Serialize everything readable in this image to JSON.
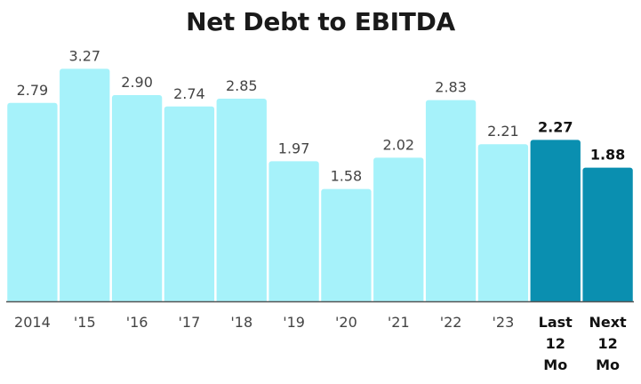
{
  "chart_data": {
    "type": "bar",
    "title": "Net Debt to EBITDA",
    "xlabel": "",
    "ylabel": "",
    "ylim": [
      0,
      3.5
    ],
    "grid": false,
    "legend": "none",
    "categories": [
      "2014",
      "'15",
      "'16",
      "'17",
      "'18",
      "'19",
      "'20",
      "'21",
      "'22",
      "'23",
      "Last 12 Mo",
      "Next 12 Mo"
    ],
    "category_lines": [
      [
        "2014"
      ],
      [
        "'15"
      ],
      [
        "'16"
      ],
      [
        "'17"
      ],
      [
        "'18"
      ],
      [
        "'19"
      ],
      [
        "'20"
      ],
      [
        "'21"
      ],
      [
        "'22"
      ],
      [
        "'23"
      ],
      [
        "Last",
        "12",
        "Mo"
      ],
      [
        "Next",
        "12",
        "Mo"
      ]
    ],
    "values": [
      2.79,
      3.27,
      2.9,
      2.74,
      2.85,
      1.97,
      1.58,
      2.02,
      2.83,
      2.21,
      2.27,
      1.88
    ],
    "value_labels": [
      "2.79",
      "3.27",
      "2.90",
      "2.74",
      "2.85",
      "1.97",
      "1.58",
      "2.02",
      "2.83",
      "2.21",
      "2.27",
      "1.88"
    ],
    "highlighted": [
      false,
      false,
      false,
      false,
      false,
      false,
      false,
      false,
      false,
      false,
      true,
      true
    ],
    "colors": {
      "bar": "#a6f2fa",
      "bar_highlight": "#0a8fb0",
      "axis": "#555555"
    }
  }
}
